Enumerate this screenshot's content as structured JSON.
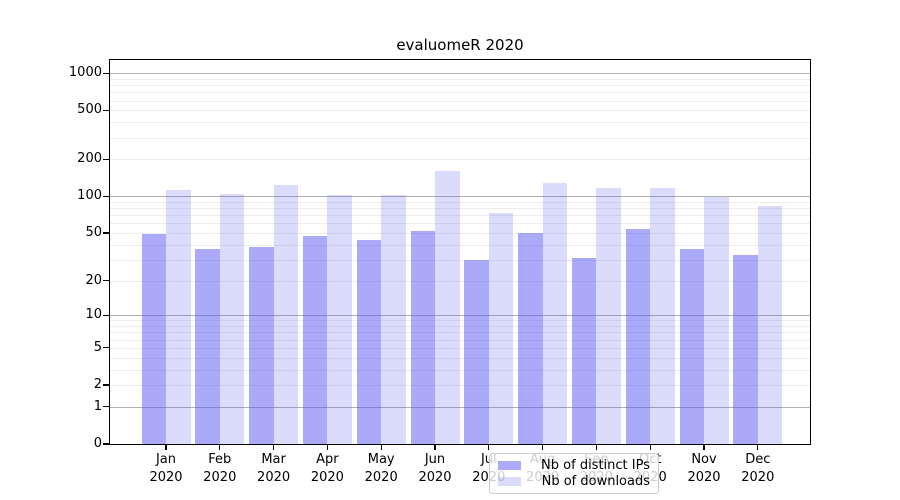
{
  "title": "evaluomeR 2020",
  "chart_data": {
    "type": "bar",
    "title": "evaluomeR 2020",
    "categories": [
      "Jan",
      "Feb",
      "Mar",
      "Apr",
      "May",
      "Jun",
      "Jul",
      "Aug",
      "Sep",
      "Oct",
      "Nov",
      "Dec"
    ],
    "category_year": "2020",
    "series": [
      {
        "name": "Nb of distinct IPs",
        "color": "rgba(85,85,243,0.50)",
        "values": [
          49,
          37,
          38,
          47,
          44,
          52,
          30,
          50,
          31,
          54,
          37,
          33
        ]
      },
      {
        "name": "Nb of downloads",
        "color": "rgba(85,85,243,0.21)",
        "values": [
          113,
          105,
          125,
          103,
          102,
          160,
          73,
          128,
          118,
          116,
          99,
          83
        ]
      }
    ],
    "y_scale": "log10(1+x)",
    "y_ticks": [
      0,
      1,
      2,
      5,
      10,
      20,
      50,
      100,
      200,
      500,
      1000
    ],
    "y_major_gridlines": [
      1,
      10,
      100,
      1000
    ],
    "y_minor_gridlines": [
      2,
      3,
      4,
      5,
      6,
      7,
      8,
      9,
      20,
      30,
      40,
      50,
      60,
      70,
      80,
      90,
      200,
      300,
      400,
      500,
      600,
      700,
      800,
      900
    ],
    "y_axis_top": 1280,
    "ylim": [
      0,
      1280
    ],
    "grid": true,
    "legend_position": "bottom-center",
    "colors": {
      "major_gridline": "#b0b0b0",
      "minor_gridline": "#ededed",
      "frame": "#000000",
      "legend_border": "#cccccc"
    }
  }
}
